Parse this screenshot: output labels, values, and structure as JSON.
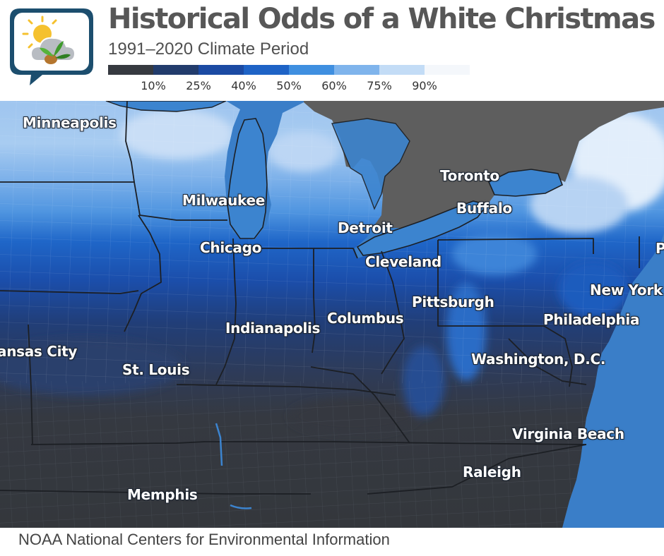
{
  "header": {
    "title": "Historical Odds of a White Christmas",
    "subtitle": "1991–2020 Climate Period"
  },
  "legend": {
    "swatches": [
      {
        "color": "#363a40",
        "range": "< 10%"
      },
      {
        "color": "#223c6c",
        "range": "10–25%"
      },
      {
        "color": "#1b4aa3",
        "range": "25–40%"
      },
      {
        "color": "#1e63c6",
        "range": "40–50%"
      },
      {
        "color": "#3f8fe0",
        "range": "50–60%"
      },
      {
        "color": "#7fb4ec",
        "range": "60–75%"
      },
      {
        "color": "#c3dcf6",
        "range": "75–90%"
      },
      {
        "color": "#f4f7fb",
        "range": "> 90%"
      }
    ],
    "labels": [
      "10%",
      "25%",
      "40%",
      "50%",
      "60%",
      "75%",
      "90%"
    ]
  },
  "colors": {
    "water": "#3a7ec8",
    "lake": "#3c84cf",
    "land_outside": "#5e5e5e",
    "frame_line": "#1a3f5c",
    "boundary": "#1c1f24"
  },
  "logo": {
    "icon": "partly-sunny-plant-speech-bubble-icon"
  },
  "cities": [
    {
      "name": "Minneapolis"
    },
    {
      "name": "Milwaukee"
    },
    {
      "name": "Chicago"
    },
    {
      "name": "Detroit"
    },
    {
      "name": "Toronto"
    },
    {
      "name": "Buffalo"
    },
    {
      "name": "Cleveland"
    },
    {
      "name": "Pittsburgh"
    },
    {
      "name": "New York"
    },
    {
      "name": "P"
    },
    {
      "name": "Philadelphia"
    },
    {
      "name": "Columbus"
    },
    {
      "name": "Indianapolis"
    },
    {
      "name": "ansas City"
    },
    {
      "name": "St. Louis"
    },
    {
      "name": "Washington,  D.C."
    },
    {
      "name": "Virginia Beach"
    },
    {
      "name": "Raleigh"
    },
    {
      "name": "Memphis"
    }
  ],
  "source": "NOAA National Centers for Environmental Information"
}
